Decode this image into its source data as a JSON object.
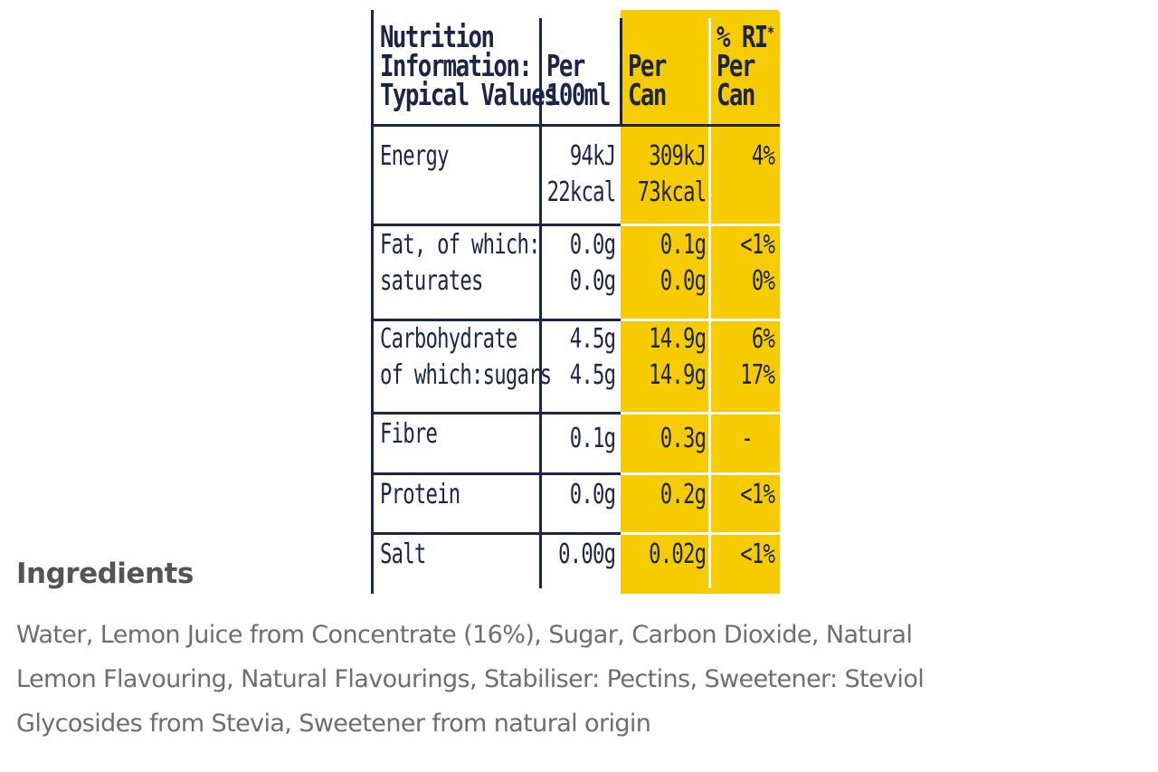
{
  "table": {
    "header": {
      "label": [
        "Nutrition",
        "Information:",
        "Typical Values"
      ],
      "per100": [
        "Per",
        "100ml"
      ],
      "percan": [
        "Per",
        "Can"
      ],
      "ri": [
        "% RI",
        "*",
        "Per",
        "Can"
      ]
    },
    "rows": [
      {
        "label": [
          "Energy"
        ],
        "per100": [
          "94kJ",
          "22kcal"
        ],
        "percan": [
          "309kJ",
          "73kcal"
        ],
        "ri": [
          "4%"
        ]
      },
      {
        "label": [
          "Fat, of which:",
          "saturates"
        ],
        "per100": [
          "0.0g",
          "0.0g"
        ],
        "percan": [
          "0.1g",
          "0.0g"
        ],
        "ri": [
          "<1%",
          "0%"
        ]
      },
      {
        "label": [
          "Carbohydrate",
          "of which:sugars"
        ],
        "per100": [
          "4.5g",
          "4.5g"
        ],
        "percan": [
          "14.9g",
          "14.9g"
        ],
        "ri": [
          "6%",
          "17%"
        ]
      },
      {
        "label": [
          "Fibre"
        ],
        "per100": [
          "0.1g"
        ],
        "percan": [
          "0.3g"
        ],
        "ri": [
          "-"
        ]
      },
      {
        "label": [
          "Protein"
        ],
        "per100": [
          "0.0g"
        ],
        "percan": [
          "0.2g"
        ],
        "ri": [
          "<1%"
        ]
      },
      {
        "label": [
          "Salt"
        ],
        "per100": [
          "0.00g"
        ],
        "percan": [
          "0.02g"
        ],
        "ri": [
          "<1%"
        ]
      }
    ],
    "colors": {
      "navy": "#1c2449",
      "yellow": "#f6cc00"
    }
  },
  "ingredients": {
    "title": "Ingredients",
    "lines": [
      "Water, Lemon Juice from Concentrate (16%), Sugar, Carbon Dioxide, Natural",
      "Lemon Flavouring, Natural Flavourings, Stabiliser: Pectins, Sweetener: Steviol",
      "Glycosides from Stevia, Sweetener from natural origin"
    ]
  }
}
